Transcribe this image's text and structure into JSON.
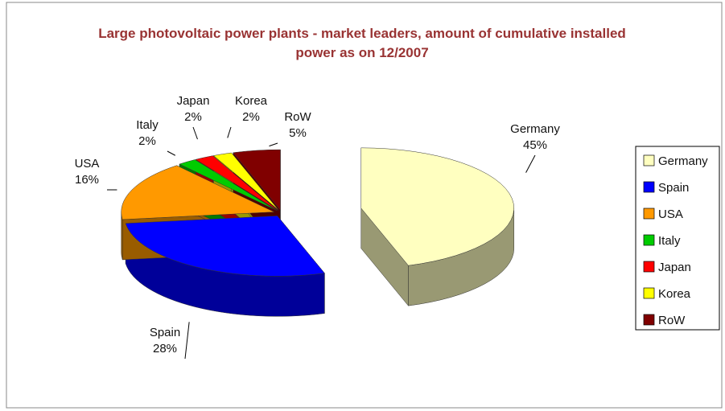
{
  "chart_data": {
    "type": "pie",
    "title": "Large photovoltaic power plants - market leaders, amount of cumulative installed power as on 12/2007",
    "categories": [
      "Germany",
      "Spain",
      "USA",
      "Italy",
      "Japan",
      "Korea",
      "RoW"
    ],
    "values": [
      45,
      28,
      16,
      2,
      2,
      2,
      5
    ],
    "value_labels": [
      "45%",
      "28%",
      "16%",
      "2%",
      "2%",
      "2%",
      "5%"
    ],
    "colors": [
      "#ffffc0",
      "#0000ff",
      "#ff9900",
      "#00cc00",
      "#ff0000",
      "#ffff00",
      "#800000"
    ],
    "legend": "right"
  }
}
